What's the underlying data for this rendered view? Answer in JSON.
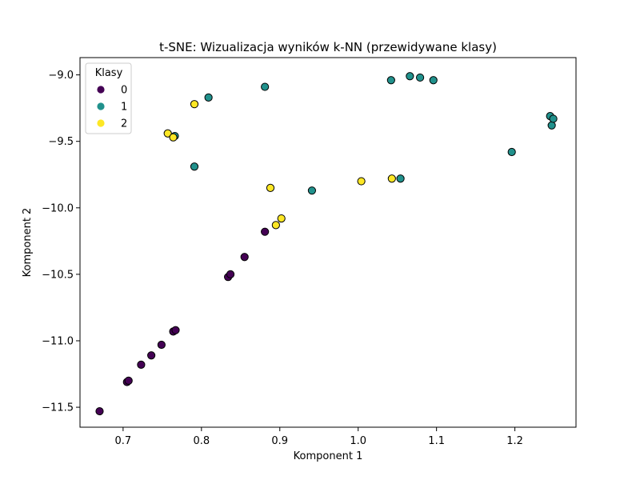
{
  "chart_data": {
    "type": "scatter",
    "title": "t-SNE: Wizualizacja wyników k-NN (przewidywane klasy)",
    "xlabel": "Komponent 1",
    "ylabel": "Komponent 2",
    "xlim": [
      0.645,
      1.278
    ],
    "ylim": [
      -11.65,
      -8.87
    ],
    "xticks": [
      0.7,
      0.8,
      0.9,
      1.0,
      1.1,
      1.2
    ],
    "xtick_labels": [
      "0.7",
      "0.8",
      "0.9",
      "1.0",
      "1.1",
      "1.2"
    ],
    "yticks": [
      -9.0,
      -9.5,
      -10.0,
      -10.5,
      -11.0,
      -11.5
    ],
    "ytick_labels": [
      "−9.0",
      "−9.5",
      "−10.0",
      "−10.5",
      "−11.0",
      "−11.5"
    ],
    "grid": false,
    "legend": {
      "title": "Klasy",
      "placement": "top-left",
      "entries": [
        "0",
        "1",
        "2"
      ]
    },
    "colors": {
      "0": "#440154",
      "1": "#21918c",
      "2": "#fde725"
    },
    "series": [
      {
        "name": "0",
        "x": [
          0.67,
          0.705,
          0.707,
          0.723,
          0.736,
          0.749,
          0.764,
          0.767,
          0.834,
          0.837,
          0.855,
          0.881
        ],
        "y": [
          -11.53,
          -11.31,
          -11.3,
          -11.18,
          -11.11,
          -11.03,
          -10.93,
          -10.92,
          -10.52,
          -10.5,
          -10.37,
          -10.18
        ]
      },
      {
        "name": "1",
        "x": [
          0.766,
          0.791,
          0.809,
          0.881,
          0.941,
          1.042,
          1.054,
          1.066,
          1.079,
          1.096,
          1.196,
          1.245,
          1.247,
          1.249
        ],
        "y": [
          -9.46,
          -9.69,
          -9.17,
          -9.09,
          -9.87,
          -9.04,
          -9.78,
          -9.01,
          -9.02,
          -9.04,
          -9.58,
          -9.31,
          -9.38,
          -9.33
        ]
      },
      {
        "name": "2",
        "x": [
          0.757,
          0.764,
          0.791,
          0.888,
          0.895,
          0.902,
          1.004,
          1.043
        ],
        "y": [
          -9.44,
          -9.47,
          -9.22,
          -9.85,
          -10.13,
          -10.08,
          -9.8,
          -9.78
        ]
      }
    ]
  }
}
